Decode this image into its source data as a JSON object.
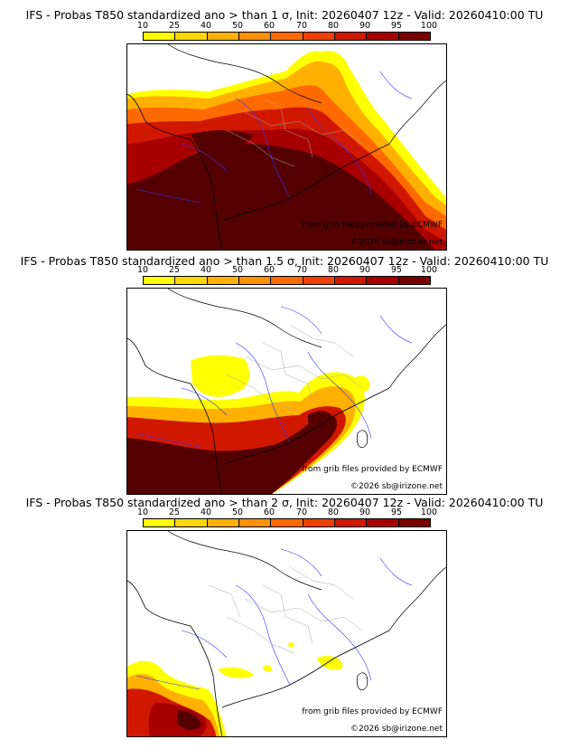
{
  "panels": [
    {
      "title": "IFS - Probas T850  standardized ano > than 1 σ, Init: 20260407 12z - Valid: 20260410:00 TU",
      "credit_grib": "from grib files provided by ECMWF",
      "credit_copyright": "©2026 sb@irizone.net"
    },
    {
      "title": "IFS - Probas T850  standardized ano > than 1.5 σ, Init: 20260407 12z - Valid: 20260410:00 TU",
      "credit_grib": "from grib files provided by ECMWF",
      "credit_copyright": "©2026 sb@irizone.net"
    },
    {
      "title": "IFS - Probas T850  standardized ano > than 2 σ, Init: 20260407 12z - Valid: 20260410:00 TU",
      "credit_grib": "from grib files provided by ECMWF",
      "credit_copyright": "©2026 sb@irizone.net"
    }
  ],
  "colorbar": {
    "ticks": [
      "10",
      "25",
      "40",
      "50",
      "60",
      "70",
      "80",
      "90",
      "95",
      "100"
    ],
    "colors": [
      "#ffff00",
      "#ffd700",
      "#ffb000",
      "#ff9000",
      "#ff6a00",
      "#f04000",
      "#d01800",
      "#a80000",
      "#7a0000",
      "#550000"
    ]
  }
}
